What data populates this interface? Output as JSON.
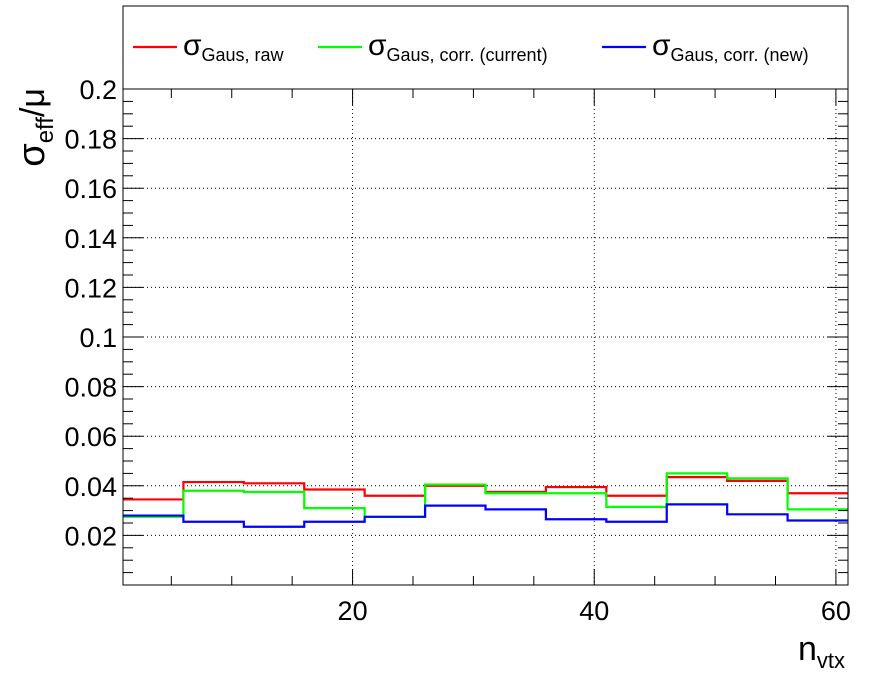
{
  "chart_data": {
    "type": "line",
    "drawstyle": "steps",
    "title": "",
    "xlabel": {
      "main": "n",
      "sub": "vtx"
    },
    "ylabel": {
      "main": "σ",
      "sub": "eff",
      "tail": "/μ"
    },
    "xlim": [
      1,
      61
    ],
    "ylim": [
      0,
      0.2
    ],
    "grid": true,
    "legend_position": "top",
    "x_ticks": [
      20,
      40,
      60
    ],
    "x_tick_labels": [
      "20",
      "40",
      "60"
    ],
    "y_ticks": [
      0.02,
      0.04,
      0.06,
      0.08,
      0.1,
      0.12,
      0.14,
      0.16,
      0.18,
      0.2
    ],
    "y_tick_labels": [
      "0.02",
      "0.04",
      "0.06",
      "0.08",
      "0.1",
      "0.12",
      "0.14",
      "0.16",
      "0.18",
      "0.2"
    ],
    "bin_edges": [
      1,
      6,
      11,
      16,
      21,
      26,
      31,
      36,
      41,
      46,
      51,
      56,
      61
    ],
    "series": [
      {
        "name": "σ",
        "name_sub": "Gaus, raw",
        "color": "#ff0000",
        "values": [
          0.0345,
          0.0415,
          0.041,
          0.0385,
          0.036,
          0.04,
          0.0375,
          0.0395,
          0.036,
          0.0435,
          0.042,
          0.037
        ]
      },
      {
        "name": "σ",
        "name_sub": "Gaus, corr. (current)",
        "color": "#00ff00",
        "values": [
          0.0275,
          0.038,
          0.0375,
          0.031,
          0.0275,
          0.0405,
          0.037,
          0.037,
          0.0315,
          0.045,
          0.043,
          0.0305
        ]
      },
      {
        "name": "σ",
        "name_sub": "Gaus, corr. (new)",
        "color": "#0000ff",
        "values": [
          0.028,
          0.0255,
          0.0235,
          0.0255,
          0.0275,
          0.032,
          0.0305,
          0.0265,
          0.0255,
          0.0325,
          0.0285,
          0.026
        ]
      }
    ]
  }
}
